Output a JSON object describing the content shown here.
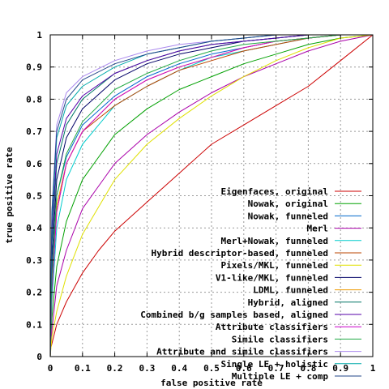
{
  "chart_data": {
    "type": "line",
    "xlabel": "false positive rate",
    "ylabel": "true positive rate",
    "xlim": [
      0,
      1
    ],
    "ylim": [
      0,
      1
    ],
    "x_ticks": [
      "0",
      "0.1",
      "0.2",
      "0.3",
      "0.4",
      "0.5",
      "0.6",
      "0.7",
      "0.8",
      "0.9",
      "1"
    ],
    "y_ticks": [
      "0",
      "0.1",
      "0.2",
      "0.3",
      "0.4",
      "0.5",
      "0.6",
      "0.7",
      "0.8",
      "0.9",
      "1"
    ],
    "grid": true,
    "legend_position": "bottom-right",
    "series": [
      {
        "name": "Eigenfaces, original",
        "color": "#cc0000",
        "x": [
          0,
          0.02,
          0.05,
          0.1,
          0.15,
          0.2,
          0.3,
          0.4,
          0.5,
          0.6,
          0.7,
          0.8,
          0.9,
          1
        ],
        "y": [
          0.02,
          0.1,
          0.17,
          0.26,
          0.33,
          0.39,
          0.48,
          0.57,
          0.66,
          0.72,
          0.78,
          0.84,
          0.92,
          1
        ]
      },
      {
        "name": "Nowak, original",
        "color": "#00a000",
        "x": [
          0,
          0.005,
          0.02,
          0.05,
          0.1,
          0.2,
          0.3,
          0.4,
          0.5,
          0.6,
          0.7,
          0.8,
          0.9,
          1
        ],
        "y": [
          0,
          0.12,
          0.28,
          0.42,
          0.55,
          0.69,
          0.77,
          0.83,
          0.87,
          0.91,
          0.94,
          0.97,
          0.99,
          1
        ]
      },
      {
        "name": "Nowak, funneled",
        "color": "#0066cc",
        "x": [
          0,
          0.005,
          0.02,
          0.05,
          0.1,
          0.2,
          0.3,
          0.4,
          0.5,
          0.6,
          0.7,
          0.8,
          0.9,
          1
        ],
        "y": [
          0,
          0.26,
          0.5,
          0.62,
          0.72,
          0.81,
          0.87,
          0.91,
          0.94,
          0.96,
          0.98,
          0.99,
          1,
          1
        ]
      },
      {
        "name": "Merl",
        "color": "#aa00aa",
        "x": [
          0,
          0.005,
          0.02,
          0.05,
          0.1,
          0.2,
          0.3,
          0.4,
          0.5,
          0.6,
          0.7,
          0.8,
          0.9,
          1
        ],
        "y": [
          0,
          0.08,
          0.22,
          0.33,
          0.46,
          0.6,
          0.69,
          0.76,
          0.82,
          0.87,
          0.91,
          0.95,
          0.98,
          1
        ]
      },
      {
        "name": "Merl+Nowak, funneled",
        "color": "#00cccc",
        "x": [
          0,
          0.005,
          0.02,
          0.05,
          0.1,
          0.2,
          0.3,
          0.4,
          0.5,
          0.6,
          0.7,
          0.8,
          0.9,
          1
        ],
        "y": [
          0,
          0.17,
          0.4,
          0.55,
          0.66,
          0.78,
          0.84,
          0.89,
          0.93,
          0.95,
          0.97,
          0.99,
          1,
          1
        ]
      },
      {
        "name": "Hybrid descriptor-based, funneled",
        "color": "#bb4400",
        "x": [
          0,
          0.005,
          0.02,
          0.05,
          0.1,
          0.2,
          0.3,
          0.4,
          0.5,
          0.6,
          0.7,
          0.8,
          0.9,
          1
        ],
        "y": [
          0,
          0.22,
          0.45,
          0.6,
          0.7,
          0.78,
          0.84,
          0.89,
          0.92,
          0.95,
          0.97,
          0.99,
          1,
          1
        ]
      },
      {
        "name": "Pixels/MKL, funneled",
        "color": "#e0e000",
        "x": [
          0,
          0.005,
          0.02,
          0.05,
          0.1,
          0.2,
          0.3,
          0.4,
          0.5,
          0.6,
          0.7,
          0.8,
          0.9,
          1
        ],
        "y": [
          0,
          0.06,
          0.14,
          0.25,
          0.38,
          0.55,
          0.66,
          0.74,
          0.81,
          0.87,
          0.92,
          0.96,
          0.99,
          1
        ]
      },
      {
        "name": "V1-like/MKL, funneled",
        "color": "#000066",
        "x": [
          0,
          0.005,
          0.02,
          0.05,
          0.1,
          0.2,
          0.3,
          0.4,
          0.5,
          0.6,
          0.7,
          0.8,
          0.9,
          1
        ],
        "y": [
          0,
          0.3,
          0.55,
          0.68,
          0.77,
          0.86,
          0.91,
          0.94,
          0.96,
          0.98,
          0.99,
          1,
          1,
          1
        ]
      },
      {
        "name": "LDML, funneled",
        "color": "#ee9900",
        "x": [
          0,
          0.005,
          0.02,
          0.05,
          0.1,
          0.2,
          0.3,
          0.4,
          0.5,
          0.6,
          0.7,
          0.8,
          0.9,
          1
        ],
        "y": [
          0,
          0.22,
          0.47,
          0.6,
          0.7,
          0.8,
          0.86,
          0.9,
          0.93,
          0.96,
          0.98,
          0.99,
          1,
          1
        ]
      },
      {
        "name": "Hybrid, aligned",
        "color": "#007766",
        "x": [
          0,
          0.005,
          0.02,
          0.05,
          0.1,
          0.2,
          0.3,
          0.4,
          0.5,
          0.6,
          0.7,
          0.8,
          0.9,
          1
        ],
        "y": [
          0,
          0.35,
          0.6,
          0.72,
          0.8,
          0.88,
          0.92,
          0.95,
          0.97,
          0.98,
          0.99,
          1,
          1,
          1
        ]
      },
      {
        "name": "Combined b/g samples based, aligned",
        "color": "#5500aa",
        "x": [
          0,
          0.005,
          0.02,
          0.05,
          0.1,
          0.2,
          0.3,
          0.4,
          0.5,
          0.6,
          0.7,
          0.8,
          0.9,
          1
        ],
        "y": [
          0,
          0.38,
          0.63,
          0.74,
          0.81,
          0.88,
          0.92,
          0.95,
          0.97,
          0.98,
          0.99,
          1,
          1,
          1
        ]
      },
      {
        "name": "Attribute classifiers",
        "color": "#cc00cc",
        "x": [
          0,
          0.005,
          0.02,
          0.05,
          0.1,
          0.2,
          0.3,
          0.4,
          0.5,
          0.6,
          0.7,
          0.8,
          0.9,
          1
        ],
        "y": [
          0,
          0.2,
          0.45,
          0.6,
          0.7,
          0.8,
          0.86,
          0.9,
          0.93,
          0.96,
          0.98,
          0.99,
          1,
          1
        ]
      },
      {
        "name": "Simile classifiers",
        "color": "#22aa44",
        "x": [
          0,
          0.005,
          0.02,
          0.05,
          0.1,
          0.2,
          0.3,
          0.4,
          0.5,
          0.6,
          0.7,
          0.8,
          0.9,
          1
        ],
        "y": [
          0,
          0.24,
          0.5,
          0.63,
          0.73,
          0.83,
          0.88,
          0.92,
          0.95,
          0.97,
          0.98,
          0.99,
          1,
          1
        ]
      },
      {
        "name": "Attribute and simile classifiers",
        "color": "#aa88ee",
        "x": [
          0,
          0.005,
          0.02,
          0.05,
          0.1,
          0.2,
          0.3,
          0.4,
          0.5,
          0.6,
          0.7,
          0.8,
          0.9,
          1
        ],
        "y": [
          0,
          0.45,
          0.72,
          0.82,
          0.87,
          0.92,
          0.95,
          0.97,
          0.98,
          0.99,
          1,
          1,
          1,
          1
        ]
      },
      {
        "name": "Single LE + holistic",
        "color": "#00aaaa",
        "x": [
          0,
          0.005,
          0.02,
          0.05,
          0.1,
          0.2,
          0.3,
          0.4,
          0.5,
          0.6,
          0.7,
          0.8,
          0.9,
          1
        ],
        "y": [
          0,
          0.42,
          0.68,
          0.78,
          0.84,
          0.9,
          0.94,
          0.96,
          0.98,
          0.99,
          1,
          1,
          1,
          1
        ]
      },
      {
        "name": "Multiple LE + comp",
        "color": "#224488",
        "x": [
          0,
          0.005,
          0.02,
          0.05,
          0.1,
          0.2,
          0.3,
          0.4,
          0.5,
          0.6,
          0.7,
          0.8,
          0.9,
          1
        ],
        "y": [
          0,
          0.45,
          0.7,
          0.8,
          0.86,
          0.91,
          0.94,
          0.96,
          0.98,
          0.99,
          1,
          1,
          1,
          1
        ]
      }
    ]
  }
}
